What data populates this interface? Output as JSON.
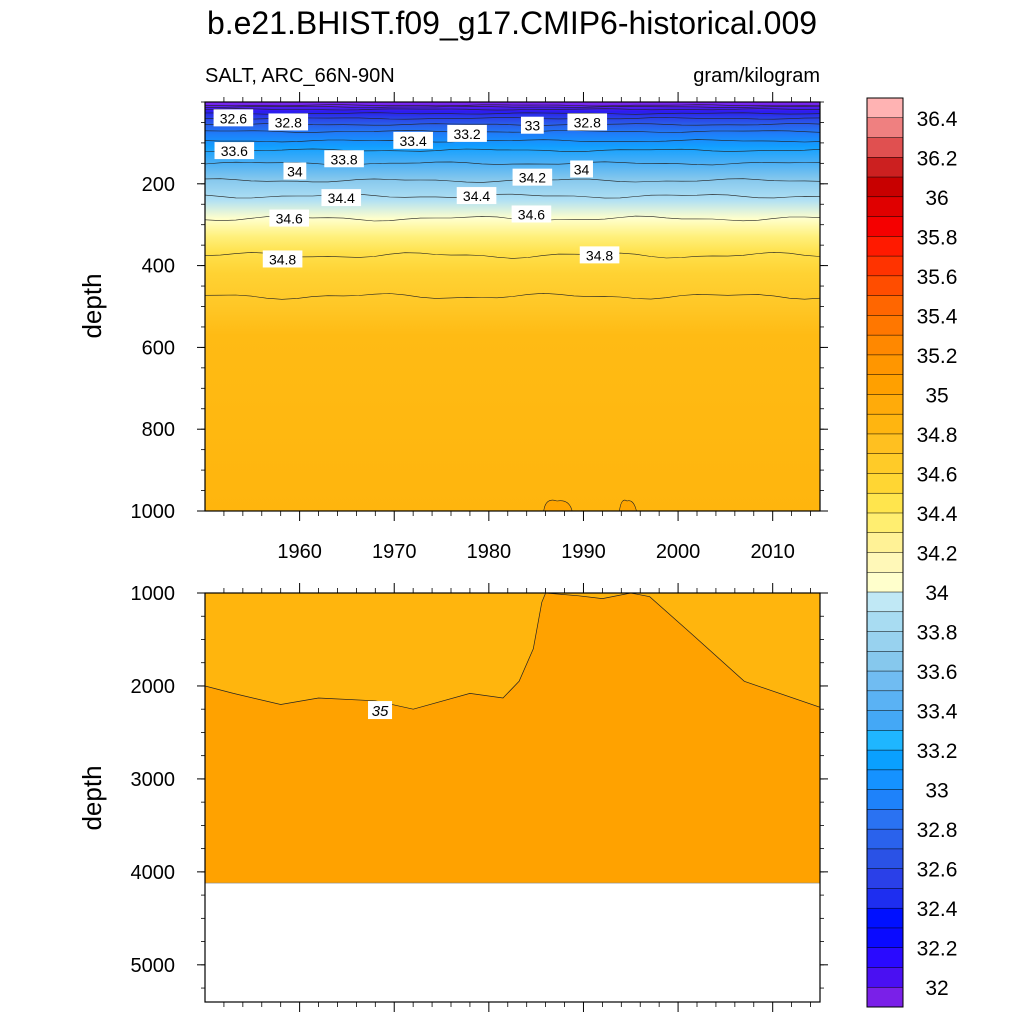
{
  "chart_data": {
    "type": "heatmap",
    "title": "b.e21.BHIST.f09_g17.CMIP6-historical.009",
    "subtitle_left": "SALT, ARC_66N-90N",
    "subtitle_right": "gram/kilogram",
    "ylabel": "depth",
    "years": [
      1950,
      2015
    ],
    "xticks": [
      1960,
      1970,
      1980,
      1990,
      2000,
      2010
    ],
    "upper": {
      "ylim": [
        0,
        1000
      ],
      "yticks": [
        200,
        400,
        600,
        800,
        1000
      ],
      "isolines": [
        {
          "level": 32.2,
          "depth": 8
        },
        {
          "level": 32.4,
          "depth": 12
        },
        {
          "level": 32.6,
          "depth": 18
        },
        {
          "level": 32.8,
          "depth": 28
        },
        {
          "level": 33.0,
          "depth": 40
        },
        {
          "level": 33.2,
          "depth": 55
        },
        {
          "level": 33.4,
          "depth": 72
        },
        {
          "level": 33.6,
          "depth": 95
        },
        {
          "level": 33.8,
          "depth": 118
        },
        {
          "level": 34.0,
          "depth": 150
        },
        {
          "level": 34.2,
          "depth": 192
        },
        {
          "level": 34.4,
          "depth": 230
        },
        {
          "level": 34.6,
          "depth": 285
        },
        {
          "level": 34.8,
          "depth": 375
        },
        {
          "level": 35.0,
          "depth": 475
        }
      ],
      "labels": [
        {
          "text": "32.6",
          "year": 1953,
          "depth": 40
        },
        {
          "text": "32.8",
          "year": 1958.8,
          "depth": 50
        },
        {
          "text": "33",
          "year": 1984.6,
          "depth": 58
        },
        {
          "text": "32.8",
          "year": 1990.4,
          "depth": 50
        },
        {
          "text": "33.4",
          "year": 1972,
          "depth": 95
        },
        {
          "text": "33.2",
          "year": 1977.7,
          "depth": 78
        },
        {
          "text": "33.6",
          "year": 1953.1,
          "depth": 120
        },
        {
          "text": "33.8",
          "year": 1964.7,
          "depth": 140
        },
        {
          "text": "34",
          "year": 1959.5,
          "depth": 170
        },
        {
          "text": "34",
          "year": 1989.8,
          "depth": 165
        },
        {
          "text": "34.2",
          "year": 1984.6,
          "depth": 185
        },
        {
          "text": "34.4",
          "year": 1964.4,
          "depth": 235
        },
        {
          "text": "34.4",
          "year": 1978.7,
          "depth": 230
        },
        {
          "text": "34.6",
          "year": 1958.9,
          "depth": 285
        },
        {
          "text": "34.6",
          "year": 1984.5,
          "depth": 275
        },
        {
          "text": "34.8",
          "year": 1958.2,
          "depth": 385
        },
        {
          "text": "34.8",
          "year": 1991.7,
          "depth": 375
        }
      ]
    },
    "lower": {
      "ylim": [
        1000,
        5400
      ],
      "yticks": [
        1000,
        2000,
        3000,
        4000,
        5000
      ],
      "bottom_depth": 4120,
      "isoline_35": [
        {
          "year": 1950,
          "depth": 2000
        },
        {
          "year": 1953,
          "depth": 2080
        },
        {
          "year": 1958,
          "depth": 2200
        },
        {
          "year": 1962,
          "depth": 2130
        },
        {
          "year": 1968,
          "depth": 2160
        },
        {
          "year": 1972,
          "depth": 2250
        },
        {
          "year": 1978,
          "depth": 2080
        },
        {
          "year": 1981.5,
          "depth": 2130
        },
        {
          "year": 1983.2,
          "depth": 1950
        },
        {
          "year": 1984.7,
          "depth": 1600
        },
        {
          "year": 1985.6,
          "depth": 1100
        },
        {
          "year": 1986,
          "depth": 1000
        },
        {
          "year": 1989.5,
          "depth": 1030
        },
        {
          "year": 1992,
          "depth": 1060
        },
        {
          "year": 1995,
          "depth": 1000
        },
        {
          "year": 1997,
          "depth": 1040
        },
        {
          "year": 2001,
          "depth": 1400
        },
        {
          "year": 2007,
          "depth": 1950
        },
        {
          "year": 2015,
          "depth": 2230
        }
      ],
      "label": {
        "text": "35",
        "year": 1968.5,
        "depth": 2270
      }
    },
    "colorbar": {
      "labels": [
        "36.4",
        "36.2",
        "36",
        "35.8",
        "35.6",
        "35.4",
        "35.2",
        "35",
        "34.8",
        "34.6",
        "34.4",
        "34.2",
        "34",
        "33.8",
        "33.6",
        "33.4",
        "33.2",
        "33",
        "32.8",
        "32.6",
        "32.4",
        "32.2",
        "32"
      ],
      "colors": [
        "#ffb3b3",
        "#ef8080",
        "#e05050",
        "#cc2020",
        "#c80000",
        "#e00000",
        "#f50000",
        "#ff1a00",
        "#ff3300",
        "#ff4d00",
        "#ff6600",
        "#ff7700",
        "#ff8800",
        "#ff9600",
        "#ffa000",
        "#ffab0a",
        "#ffb510",
        "#ffc020",
        "#ffcb28",
        "#ffd633",
        "#ffe54d",
        "#ffee70",
        "#fff296",
        "#fff8b8",
        "#ffffcc",
        "#c0e8f5",
        "#a8dcf2",
        "#98d2ef",
        "#86c8ed",
        "#70bcf2",
        "#5ab2f4",
        "#44a8f6",
        "#1fb6ff",
        "#0aa0ff",
        "#1592ff",
        "#1e82fa",
        "#2a72f2",
        "#2a62ec",
        "#2a52e6",
        "#2a40e8",
        "#1e2ef0",
        "#0010ff",
        "#0a0aff",
        "#2a0aff",
        "#4a10f2",
        "#7a20e8"
      ]
    }
  }
}
